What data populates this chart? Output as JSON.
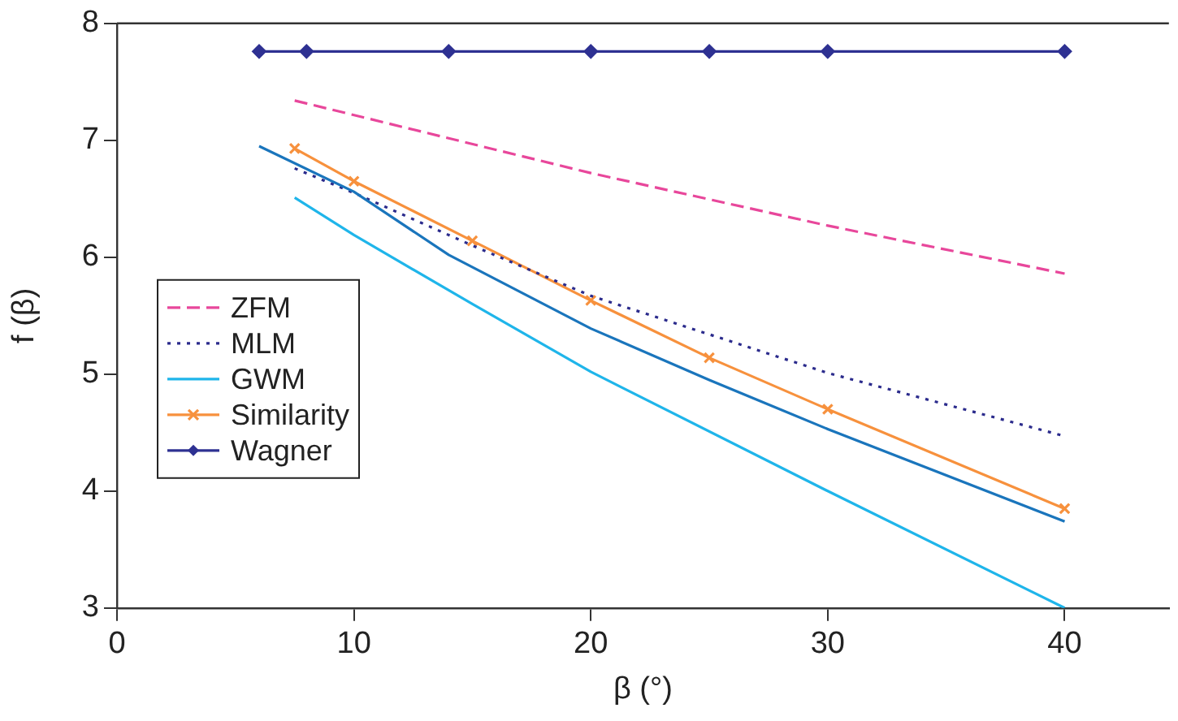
{
  "chart_data": {
    "type": "line",
    "xlabel": "β (°)",
    "ylabel": "f (β)",
    "xlim": [
      0,
      44.4
    ],
    "xticks": [
      0,
      10,
      20,
      30,
      40
    ],
    "ylim": [
      3,
      8
    ],
    "yticks": [
      3,
      4,
      5,
      6,
      7,
      8
    ],
    "grid": false,
    "legend": "left",
    "series": [
      {
        "color": "#1a75bc",
        "marker": "none",
        "line_style": "solid",
        "x": [
          6,
          10,
          14,
          20,
          25,
          30,
          40
        ],
        "values": [
          6.95,
          6.56,
          6.02,
          5.39,
          4.95,
          4.53,
          3.74
        ]
      },
      {
        "name": "ZFM",
        "color": "#e8479b",
        "marker": "none",
        "line_style": "dashed",
        "x": [
          7.5,
          20,
          30,
          40
        ],
        "values": [
          7.34,
          6.72,
          6.27,
          5.86
        ]
      },
      {
        "name": "MLM",
        "color": "#2b2b8c",
        "marker": "none",
        "line_style": "dotted",
        "x": [
          7.5,
          10,
          15,
          20,
          30,
          40
        ],
        "values": [
          6.76,
          6.55,
          6.1,
          5.67,
          5.01,
          4.47
        ]
      },
      {
        "name": "GWM",
        "color": "#1fb5ea",
        "marker": "none",
        "line_style": "solid",
        "x": [
          7.5,
          10,
          15,
          20,
          30,
          40
        ],
        "values": [
          6.51,
          6.19,
          5.6,
          5.02,
          4.0,
          3.0
        ]
      },
      {
        "name": "Similarity",
        "color": "#f7913d",
        "marker": "cross",
        "line_style": "solid",
        "x": [
          7.5,
          10,
          15,
          20,
          25,
          30,
          40
        ],
        "values": [
          6.93,
          6.65,
          6.14,
          5.63,
          5.14,
          4.7,
          3.85
        ]
      },
      {
        "name": "Wagner",
        "color": "#2e3192",
        "marker": "diamond",
        "line_style": "solid",
        "x": [
          6,
          8,
          14,
          20,
          25,
          30,
          40
        ],
        "values": [
          7.76,
          7.76,
          7.76,
          7.76,
          7.76,
          7.76,
          7.76
        ]
      }
    ]
  }
}
